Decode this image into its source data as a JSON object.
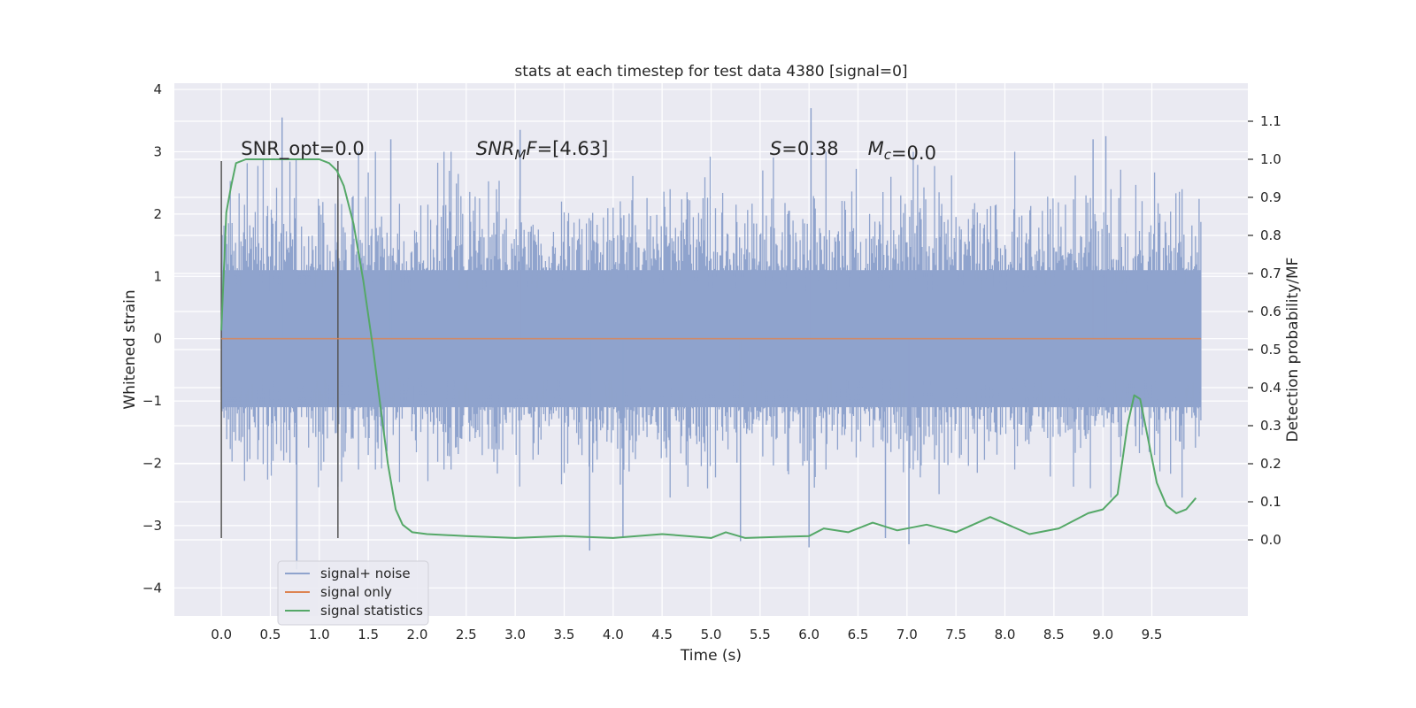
{
  "chart_data": {
    "type": "line",
    "title": "stats at each timestep for test data 4380 [signal=0]",
    "xlabel": "Time (s)",
    "ylabel": "Whitened strain",
    "y2label": "Detection probability/MF",
    "xlim": [
      -0.48,
      10.48
    ],
    "ylim": [
      -4.45,
      4.1
    ],
    "y2lim": [
      -0.2,
      1.2
    ],
    "xticks": [
      "0.0",
      "0.5",
      "1.0",
      "1.5",
      "2.0",
      "2.5",
      "3.0",
      "3.5",
      "4.0",
      "4.5",
      "5.0",
      "5.5",
      "6.0",
      "6.5",
      "7.0",
      "7.5",
      "8.0",
      "8.5",
      "9.0",
      "9.5"
    ],
    "yticks": [
      "−4",
      "−3",
      "−2",
      "−1",
      "0",
      "1",
      "2",
      "3",
      "4"
    ],
    "y2ticks": [
      "0.0",
      "0.1",
      "0.2",
      "0.3",
      "0.4",
      "0.5",
      "0.6",
      "0.7",
      "0.8",
      "0.9",
      "1.0",
      "1.1"
    ],
    "grid": true,
    "legend_position": "lower-left",
    "colors": {
      "noise": "#8fa3cd",
      "signal": "#dd8452",
      "stats": "#55a868",
      "marker": "#555555",
      "background": "#eaeaf2"
    },
    "annotations": [
      {
        "text": "SNR_opt=0.0",
        "x": 0.2,
        "y": 2.95
      },
      {
        "text": "SNR_MF=[4.63]",
        "x": 2.6,
        "y": 2.95
      },
      {
        "text": "S=0.38",
        "x": 5.6,
        "y": 2.95
      },
      {
        "text": "M_c=0.0",
        "x": 6.6,
        "y": 2.95
      }
    ],
    "markers": [
      {
        "x": 0.0,
        "y_min": -3.2,
        "y_max": 2.85
      },
      {
        "x": 1.19,
        "y_min": -3.2,
        "y_max": 2.85
      }
    ],
    "series": [
      {
        "name": "signal+ noise",
        "kind": "noise-band",
        "x_range": [
          0.0,
          10.0
        ],
        "core_amplitude": 1.6,
        "outliers": [
          [
            0.62,
            3.55
          ],
          [
            6.02,
            3.7
          ],
          [
            3.05,
            3.35
          ],
          [
            1.73,
            3.2
          ],
          [
            9.03,
            3.25
          ],
          [
            8.9,
            3.2
          ],
          [
            0.77,
            -3.7
          ],
          [
            3.76,
            -3.4
          ],
          [
            6.0,
            -3.35
          ],
          [
            5.3,
            -3.25
          ],
          [
            7.02,
            -3.3
          ],
          [
            6.78,
            -3.2
          ],
          [
            4.1,
            -3.2
          ]
        ]
      },
      {
        "name": "signal only",
        "values": [
          [
            0.0,
            0.0
          ],
          [
            10.0,
            0.0
          ]
        ]
      },
      {
        "name": "signal statistics",
        "values": [
          [
            0.0,
            0.55
          ],
          [
            0.05,
            0.86
          ],
          [
            0.1,
            0.93
          ],
          [
            0.15,
            0.99
          ],
          [
            0.25,
            1.0
          ],
          [
            0.5,
            1.0
          ],
          [
            0.75,
            1.0
          ],
          [
            1.0,
            1.0
          ],
          [
            1.1,
            0.99
          ],
          [
            1.18,
            0.97
          ],
          [
            1.25,
            0.93
          ],
          [
            1.35,
            0.83
          ],
          [
            1.45,
            0.68
          ],
          [
            1.55,
            0.5
          ],
          [
            1.62,
            0.36
          ],
          [
            1.7,
            0.2
          ],
          [
            1.78,
            0.08
          ],
          [
            1.85,
            0.04
          ],
          [
            1.95,
            0.02
          ],
          [
            2.1,
            0.015
          ],
          [
            2.5,
            0.01
          ],
          [
            3.0,
            0.005
          ],
          [
            3.5,
            0.01
          ],
          [
            4.0,
            0.005
          ],
          [
            4.5,
            0.015
          ],
          [
            5.0,
            0.005
          ],
          [
            5.15,
            0.02
          ],
          [
            5.35,
            0.005
          ],
          [
            5.7,
            0.008
          ],
          [
            6.0,
            0.01
          ],
          [
            6.15,
            0.03
          ],
          [
            6.4,
            0.02
          ],
          [
            6.65,
            0.045
          ],
          [
            6.9,
            0.025
          ],
          [
            7.2,
            0.04
          ],
          [
            7.5,
            0.02
          ],
          [
            7.85,
            0.06
          ],
          [
            8.25,
            0.015
          ],
          [
            8.55,
            0.03
          ],
          [
            8.85,
            0.07
          ],
          [
            9.0,
            0.08
          ],
          [
            9.15,
            0.12
          ],
          [
            9.25,
            0.3
          ],
          [
            9.32,
            0.38
          ],
          [
            9.38,
            0.37
          ],
          [
            9.45,
            0.28
          ],
          [
            9.55,
            0.15
          ],
          [
            9.65,
            0.09
          ],
          [
            9.75,
            0.07
          ],
          [
            9.85,
            0.08
          ],
          [
            9.95,
            0.11
          ]
        ]
      }
    ]
  }
}
